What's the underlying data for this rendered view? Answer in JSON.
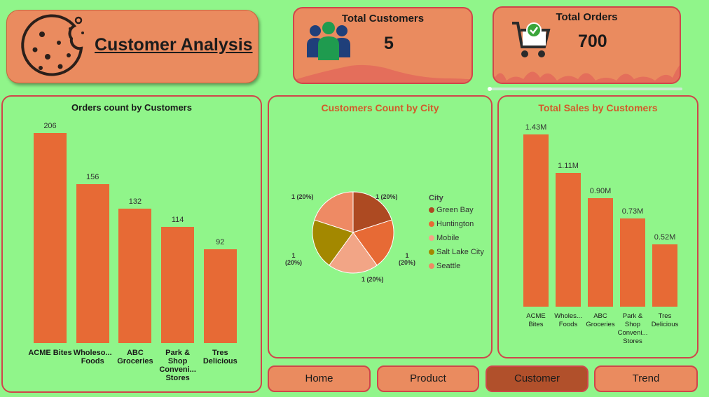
{
  "header": {
    "title": "Customer Analysis"
  },
  "kpis": {
    "customers": {
      "title": "Total Customers",
      "value": "5"
    },
    "orders": {
      "title": "Total Orders",
      "value": "700"
    }
  },
  "orders_chart": {
    "title": "Orders count by Customers",
    "categories": [
      "ACME Bites",
      "Wholeso... Foods",
      "ABC Groceries",
      "Park & Shop Conveni... Stores",
      "Tres Delicious"
    ],
    "values": [
      206,
      156,
      132,
      114,
      92
    ],
    "value_labels": [
      "206",
      "156",
      "132",
      "114",
      "92"
    ]
  },
  "city_chart": {
    "title": "Customers Count by City",
    "legend_title": "City",
    "slice_labels": [
      "1 (20%)",
      "1 (20%)",
      "1 (20%)",
      "1 (20%)",
      "1 (20%)"
    ],
    "cities": [
      "Green Bay",
      "Huntington",
      "Mobile",
      "Salt Lake City",
      "Seattle"
    ],
    "colors": [
      "#ad4a22",
      "#e76a35",
      "#f2a586",
      "#a38800",
      "#ee8a64"
    ]
  },
  "sales_chart": {
    "title": "Total Sales by Customers",
    "categories": [
      "ACME Bites",
      "Wholes... Foods",
      "ABC Groceries",
      "Park & Shop Conveni... Stores",
      "Tres Delicious"
    ],
    "values": [
      1.43,
      1.11,
      0.9,
      0.73,
      0.52
    ],
    "value_labels": [
      "1.43M",
      "1.11M",
      "0.90M",
      "0.73M",
      "0.52M"
    ]
  },
  "nav": {
    "home": "Home",
    "product": "Product",
    "customer": "Customer",
    "trend": "Trend"
  },
  "chart_data": [
    {
      "type": "bar",
      "title": "Orders count by Customers",
      "categories": [
        "ACME Bites",
        "Wholeso... Foods",
        "ABC Groceries",
        "Park & Shop Conveni... Stores",
        "Tres Delicious"
      ],
      "values": [
        206,
        156,
        132,
        114,
        92
      ]
    },
    {
      "type": "pie",
      "title": "Customers Count by City",
      "categories": [
        "Green Bay",
        "Huntington",
        "Mobile",
        "Salt Lake City",
        "Seattle"
      ],
      "values": [
        1,
        1,
        1,
        1,
        1
      ],
      "legend_title": "City"
    },
    {
      "type": "bar",
      "title": "Total Sales by Customers",
      "categories": [
        "ACME Bites",
        "Wholes... Foods",
        "ABC Groceries",
        "Park & Shop Conveni... Stores",
        "Tres Delicious"
      ],
      "values": [
        1.43,
        1.11,
        0.9,
        0.73,
        0.52
      ],
      "value_labels": [
        "1.43M",
        "1.11M",
        "0.90M",
        "0.73M",
        "0.52M"
      ]
    }
  ]
}
